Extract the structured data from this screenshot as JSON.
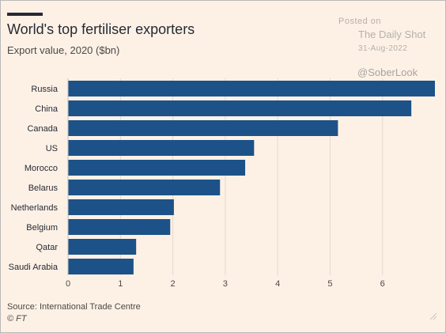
{
  "watermark": {
    "posted": "Posted on",
    "name": "The Daily Shot",
    "date": "31-Aug-2022",
    "handle": "@SoberLook"
  },
  "colors": {
    "background": "#fdf1e6",
    "bar": "#1d5288",
    "grid": "#e3d9cf",
    "text": "#262a33"
  },
  "footer": {
    "source": "Source: International Trade Centre",
    "copyright": "© FT"
  },
  "chart_data": {
    "type": "bar",
    "orientation": "horizontal",
    "title": "World's top fertiliser exporters",
    "subtitle": "Export value, 2020 ($bn)",
    "xlabel": "",
    "ylabel": "",
    "categories": [
      "Russia",
      "China",
      "Canada",
      "US",
      "Morocco",
      "Belarus",
      "Netherlands",
      "Belgium",
      "Qatar",
      "Saudi Arabia"
    ],
    "values": [
      7.0,
      6.55,
      5.15,
      3.55,
      3.38,
      2.9,
      2.02,
      1.95,
      1.3,
      1.25
    ],
    "xlim": [
      0,
      7
    ],
    "xticks": [
      0,
      1,
      2,
      3,
      4,
      5,
      6
    ],
    "grid": true
  }
}
